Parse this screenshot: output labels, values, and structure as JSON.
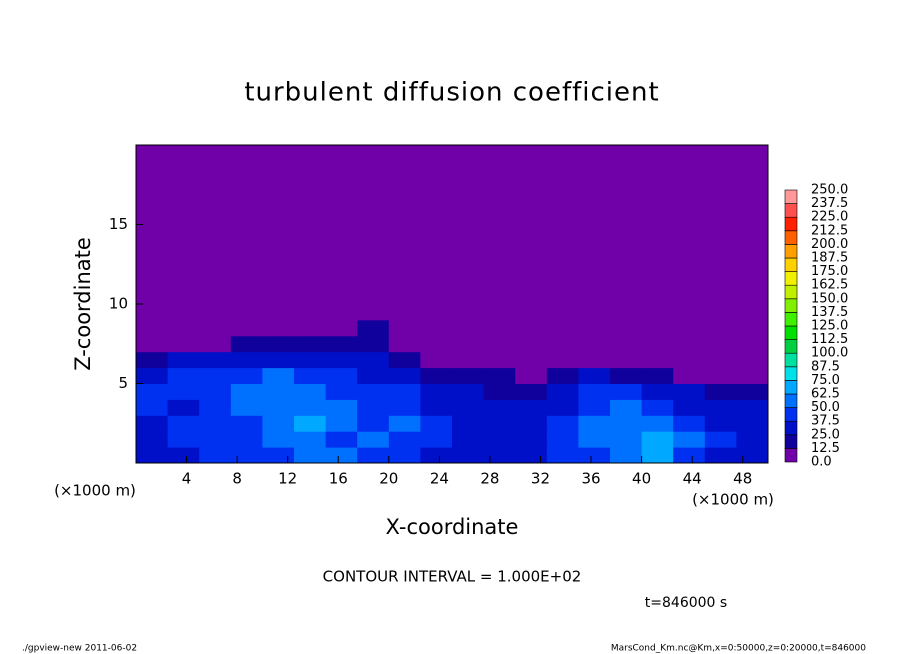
{
  "chart_data": {
    "type": "heatmap",
    "title": "turbulent diffusion coefficient",
    "xlabel": "X-coordinate",
    "ylabel": "Z-coordinate",
    "x_unit": "(×1000 m)",
    "annotation": "CONTOUR INTERVAL = 1.000E+02",
    "time_label": "t=846000 s",
    "footer_left": "./gpview-new   2011-06-02",
    "footer_right": "MarsCond_Km.nc@Km,x=0:50000,z=0:20000,t=846000",
    "xlim": [
      0,
      50
    ],
    "ylim": [
      0,
      20
    ],
    "xticks": [
      4,
      8,
      12,
      16,
      20,
      24,
      28,
      32,
      36,
      40,
      44,
      48
    ],
    "yticks": [
      5,
      10,
      15
    ],
    "xbins": [
      0,
      2.5,
      5,
      7.5,
      10,
      12.5,
      15,
      17.5,
      20,
      22.5,
      25,
      27.5,
      30,
      32.5,
      35,
      37.5,
      40,
      42.5,
      45,
      47.5,
      50
    ],
    "ybins": [
      0,
      1,
      2,
      3,
      4,
      5,
      6,
      7,
      8,
      9,
      20
    ],
    "values": [
      [
        30,
        35,
        40,
        45,
        40,
        55,
        50,
        45,
        40,
        35,
        30,
        35,
        30,
        40,
        45,
        55,
        65,
        40,
        35,
        30
      ],
      [
        35,
        40,
        45,
        45,
        50,
        60,
        45,
        50,
        45,
        40,
        35,
        30,
        35,
        45,
        50,
        55,
        70,
        50,
        40,
        35
      ],
      [
        35,
        40,
        40,
        45,
        55,
        65,
        50,
        45,
        50,
        40,
        35,
        35,
        30,
        40,
        55,
        50,
        55,
        45,
        35,
        30
      ],
      [
        40,
        35,
        45,
        50,
        60,
        55,
        50,
        40,
        45,
        35,
        30,
        30,
        25,
        35,
        45,
        50,
        40,
        35,
        30,
        25
      ],
      [
        40,
        40,
        45,
        55,
        60,
        50,
        45,
        45,
        40,
        30,
        25,
        20,
        20,
        30,
        40,
        45,
        35,
        25,
        20,
        20
      ],
      [
        35,
        40,
        40,
        45,
        50,
        45,
        40,
        35,
        30,
        20,
        15,
        15,
        10,
        15,
        25,
        20,
        15,
        10,
        10,
        10
      ],
      [
        20,
        25,
        30,
        35,
        35,
        30,
        30,
        25,
        15,
        5,
        0,
        0,
        0,
        0,
        5,
        5,
        0,
        0,
        0,
        0
      ],
      [
        0,
        0,
        5,
        15,
        20,
        20,
        20,
        15,
        0,
        0,
        0,
        0,
        0,
        0,
        0,
        0,
        0,
        0,
        0,
        0
      ],
      [
        0,
        0,
        0,
        0,
        0,
        10,
        0,
        15,
        0,
        0,
        0,
        0,
        0,
        0,
        0,
        0,
        0,
        0,
        0,
        0
      ],
      [
        0,
        0,
        0,
        0,
        0,
        0,
        0,
        0,
        0,
        0,
        0,
        0,
        0,
        0,
        0,
        0,
        0,
        0,
        0,
        0
      ]
    ],
    "colorbar": {
      "ticks": [
        {
          "value": 0,
          "label": "0.0"
        },
        {
          "value": 12.5,
          "label": "12.5"
        },
        {
          "value": 25,
          "label": "25.0"
        },
        {
          "value": 37.5,
          "label": "37.5"
        },
        {
          "value": 50,
          "label": "50.0"
        },
        {
          "value": 62.5,
          "label": "62.5"
        },
        {
          "value": 75,
          "label": "75.0"
        },
        {
          "value": 87.5,
          "label": "87.5"
        },
        {
          "value": 100,
          "label": "100.0"
        },
        {
          "value": 112.5,
          "label": "112.5"
        },
        {
          "value": 125,
          "label": "125.0"
        },
        {
          "value": 137.5,
          "label": "137.5"
        },
        {
          "value": 150,
          "label": "150.0"
        },
        {
          "value": 162.5,
          "label": "162.5"
        },
        {
          "value": 175,
          "label": "175.0"
        },
        {
          "value": 187.5,
          "label": "187.5"
        },
        {
          "value": 200,
          "label": "200.0"
        },
        {
          "value": 212.5,
          "label": "212.5"
        },
        {
          "value": 225,
          "label": "225.0"
        },
        {
          "value": 237.5,
          "label": "237.5"
        },
        {
          "value": 250,
          "label": "250.0"
        }
      ],
      "colors": [
        "#7000a8",
        "#10009c",
        "#0010c8",
        "#0030f0",
        "#0070ff",
        "#00a8ff",
        "#00e0e8",
        "#00e0a0",
        "#00d040",
        "#00e000",
        "#40f000",
        "#80f000",
        "#c0f000",
        "#f0f000",
        "#ffd000",
        "#ffa000",
        "#ff6000",
        "#ff2000",
        "#ff5050",
        "#ff9898"
      ]
    }
  }
}
